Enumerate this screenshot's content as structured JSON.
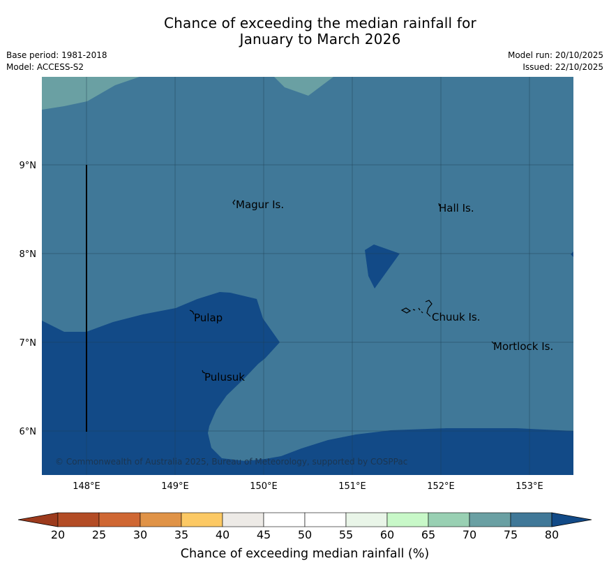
{
  "title_line1": "Chance of exceeding the median rainfall for",
  "title_line2": "January to March 2026",
  "meta_left": [
    "Base period: 1981-2018",
    "Model: ACCESS-S2"
  ],
  "meta_right": [
    "Model run: 20/10/2025",
    "Issued: 22/10/2025"
  ],
  "map": {
    "lat_ticks": [
      "9°N",
      "8°N",
      "7°N",
      "6°N"
    ],
    "lon_ticks": [
      "148°E",
      "149°E",
      "150°E",
      "151°E",
      "152°E",
      "153°E"
    ],
    "places": [
      "Magur Is.",
      "Hall Is.",
      "Pulap",
      "Chuuk Is.",
      "Mortlock Is.",
      "Pulusuk"
    ],
    "copyright": "© Commonwealth of Australia 2025, Bureau of Meteorology, supported by COSPPac",
    "colors": {
      "band_70_75": "#6aa0a3",
      "band_75_80": "#407898",
      "band_80_plus": "#124a87"
    }
  },
  "colorbar": {
    "tick_labels": [
      "20",
      "25",
      "30",
      "35",
      "40",
      "45",
      "50",
      "55",
      "60",
      "65",
      "70",
      "75",
      "80"
    ],
    "colors": [
      "#9c3a1c",
      "#b34c25",
      "#cf6733",
      "#e09347",
      "#fcc964",
      "#edeae6",
      "#ffffff",
      "#ffffff",
      "#e9f5e8",
      "#c8f8c8",
      "#99d0b3",
      "#6aa0a3",
      "#407898",
      "#124a87"
    ],
    "title": "Chance of exceeding median rainfall (%)"
  }
}
